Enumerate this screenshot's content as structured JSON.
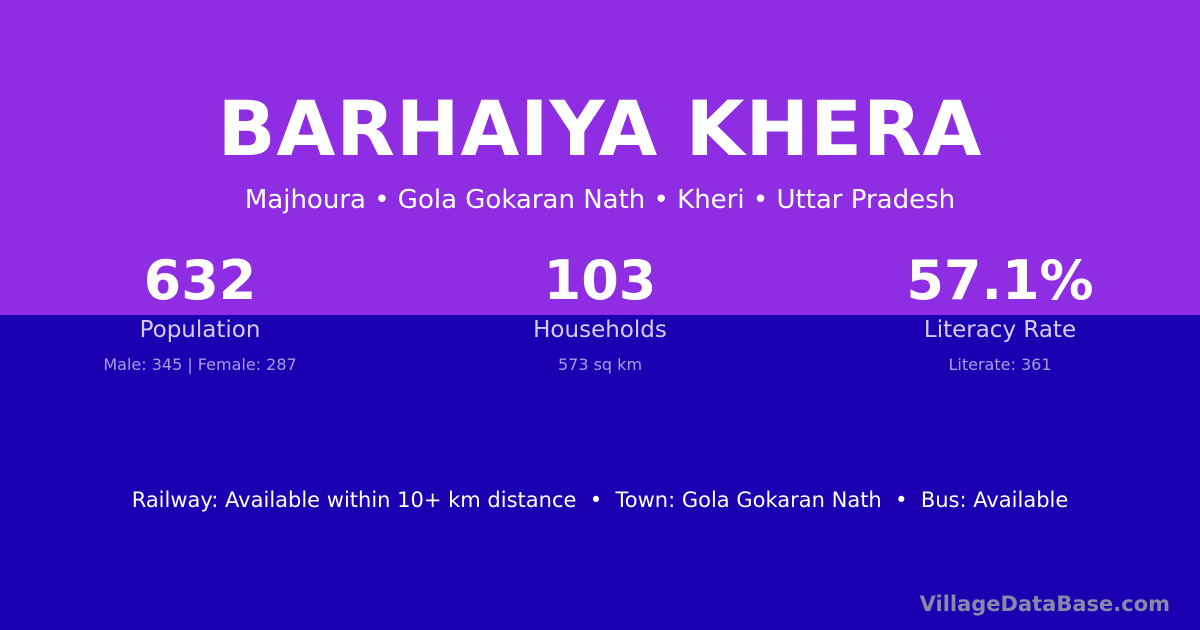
{
  "colors": {
    "top_background": "#8e2de2",
    "bottom_background": "#1a00b0"
  },
  "title": "BARHAIYA KHERA",
  "subtitle": "Majhoura • Gola Gokaran Nath • Kheri • Uttar Pradesh",
  "stats": [
    {
      "value": "632",
      "label": "Population",
      "detail": "Male: 345 | Female: 287"
    },
    {
      "value": "103",
      "label": "Households",
      "detail": "573 sq km"
    },
    {
      "value": "57.1%",
      "label": "Literacy Rate",
      "detail": "Literate: 361"
    }
  ],
  "facts": "Railway: Available within 10+ km distance  •  Town: Gola Gokaran Nath  •  Bus: Available",
  "brand": "VillageDataBase.com"
}
